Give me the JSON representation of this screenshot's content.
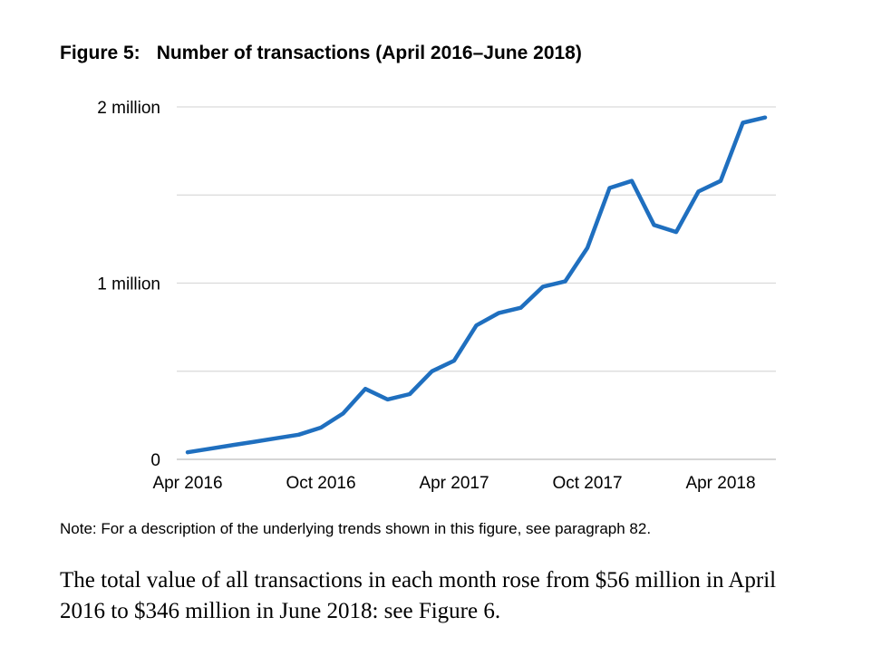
{
  "figure": {
    "label": "Figure 5:",
    "title": "Number of transactions (April 2016–June 2018)"
  },
  "chart_data": {
    "type": "line",
    "x": [
      "Apr 2016",
      "May 2016",
      "Jun 2016",
      "Jul 2016",
      "Aug 2016",
      "Sep 2016",
      "Oct 2016",
      "Nov 2016",
      "Dec 2016",
      "Jan 2017",
      "Feb 2017",
      "Mar 2017",
      "Apr 2017",
      "May 2017",
      "Jun 2017",
      "Jul 2017",
      "Aug 2017",
      "Sep 2017",
      "Oct 2017",
      "Nov 2017",
      "Dec 2017",
      "Jan 2018",
      "Feb 2018",
      "Mar 2018",
      "Apr 2018",
      "May 2018",
      "Jun 2018"
    ],
    "series": [
      {
        "values": [
          40000,
          60000,
          80000,
          100000,
          120000,
          140000,
          180000,
          260000,
          400000,
          340000,
          370000,
          500000,
          560000,
          760000,
          830000,
          860000,
          980000,
          1010000,
          1200000,
          1540000,
          1580000,
          1330000,
          1290000,
          1520000,
          1580000,
          1910000,
          1940000
        ],
        "color": "#1f6fbf"
      }
    ],
    "y_ticks": [
      {
        "value": 0,
        "label": "0"
      },
      {
        "value": 1000000,
        "label": "1 million"
      },
      {
        "value": 2000000,
        "label": "2 million"
      }
    ],
    "gridlines": [
      0,
      500000,
      1000000,
      1500000,
      2000000
    ],
    "x_ticks": [
      "Apr 2016",
      "Oct 2016",
      "Apr 2017",
      "Oct 2017",
      "Apr 2018"
    ],
    "ylim": [
      0,
      2000000
    ],
    "grid": true,
    "xlabel": "",
    "ylabel": ""
  },
  "note": "Note: For a description of the underlying trends shown in this figure, see paragraph 82.",
  "paragraph": "The total value of all transactions in each month rose from $56 million in April 2016 to $346 million in June 2018: see Figure 6."
}
